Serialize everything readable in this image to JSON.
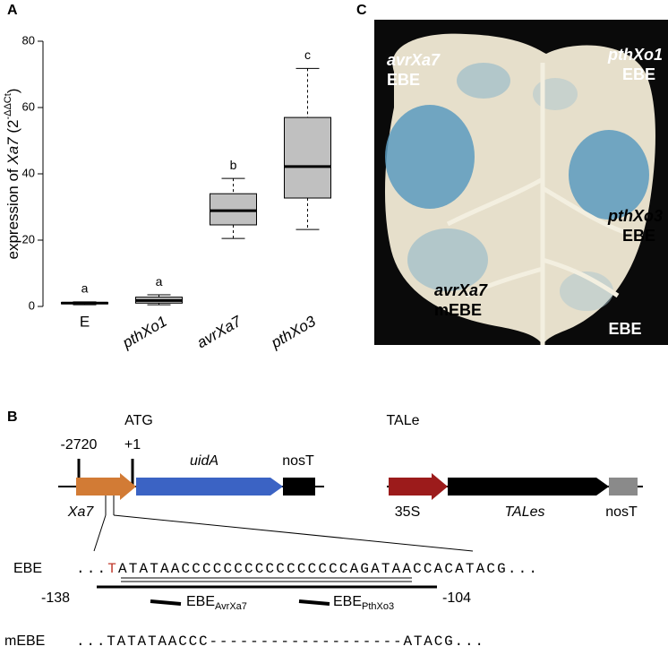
{
  "panel_labels": [
    "A",
    "B",
    "C"
  ],
  "chart_data": {
    "type": "box",
    "ylabel": [
      {
        "text": "expression of ",
        "style": "normal"
      },
      {
        "text": "Xa7",
        "style": "italic"
      },
      {
        "text": " (2",
        "style": "normal"
      },
      {
        "text": "-ΔΔCt",
        "style": "super"
      },
      {
        "text": ")",
        "style": "normal"
      }
    ],
    "categories": [
      "E",
      "pthXo1",
      "avrXa7",
      "pthXo3"
    ],
    "category_style": [
      "normal",
      "italic",
      "italic",
      "italic"
    ],
    "min": [
      0.5,
      0.5,
      20.5,
      23.2
    ],
    "q1": [
      0.8,
      1.0,
      24.6,
      32.7
    ],
    "median": [
      1,
      1.8,
      28.9,
      42.2
    ],
    "q3": [
      1.2,
      2.8,
      34,
      57
    ],
    "max": [
      1.4,
      3.5,
      38.6,
      71.8
    ],
    "letters": [
      "a",
      "a",
      "b",
      "c"
    ],
    "color": "#c0c0c0",
    "ylim": [
      0,
      80
    ],
    "yticks": [
      0,
      20,
      40,
      60,
      80
    ]
  },
  "photo": {
    "labels": [
      {
        "name": "avrXa7",
        "site": "EBE"
      },
      {
        "name": "pthXo1",
        "site": "EBE"
      },
      {
        "name": "pthXo3",
        "site": "EBE"
      },
      {
        "name": "avrXa7",
        "site": "mEBE"
      },
      {
        "site": "EBE"
      }
    ]
  },
  "diagram": {
    "reporter": {
      "pos_start": "-2720",
      "atg": "ATG",
      "pos_tss": "+1",
      "gene": "uidA",
      "terminator": "nosT",
      "promoter": "Xa7"
    },
    "effector": {
      "title": "TALe",
      "promoter": "35S",
      "gene": "TALes",
      "terminator": "nosT"
    },
    "ebe": {
      "label": "EBE",
      "lead": "...",
      "mutant_base": "T",
      "sequence": "ATATAACCCCCCCCCCCCCCCCAGATAACCACATACG",
      "tail": "...",
      "start": "-138",
      "end": "-104",
      "sites": [
        {
          "base": "EBE",
          "sub": "AvrXa7"
        },
        {
          "base": "EBE",
          "sub": "PthXo3"
        }
      ]
    },
    "mebe": {
      "label": "mEBE",
      "sequence": "...TATATAACCC-------------------ATACG..."
    }
  }
}
